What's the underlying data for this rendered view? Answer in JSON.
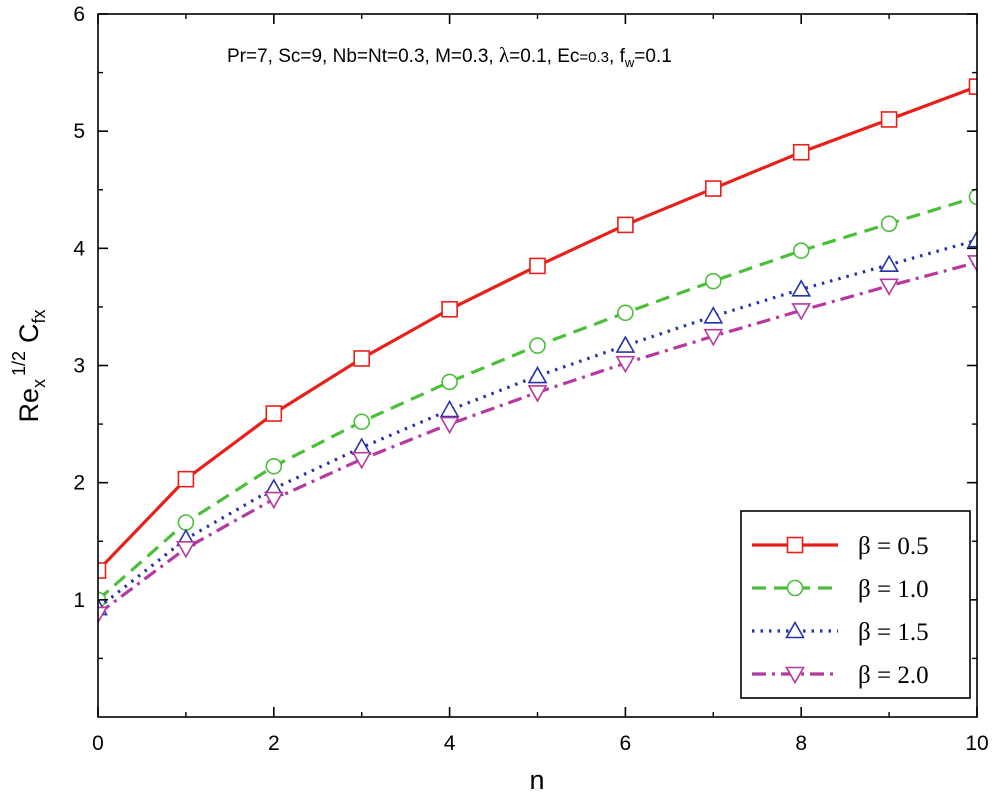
{
  "chart_data": {
    "type": "line",
    "x": [
      0,
      1,
      2,
      3,
      4,
      5,
      6,
      7,
      8,
      9,
      10
    ],
    "xlabel": "n",
    "ylabel": {
      "base": "Re",
      "base_sub": "x",
      "sup": "1/2",
      "second": "C",
      "second_sub": "fx"
    },
    "xlim": [
      0,
      10
    ],
    "ylim": [
      0,
      6
    ],
    "xticks": [
      "0",
      "2",
      "4",
      "6",
      "8",
      "10"
    ],
    "yticks": [
      "1",
      "2",
      "3",
      "4",
      "5",
      "6"
    ],
    "annotation": {
      "main": "Pr=7, Sc=9, Nb=Nt=0.3, M=0.3, ",
      "lambda": "λ",
      "lambda_val": "=0.1, Ec",
      "ec_val": "=0.3",
      "fw_pre": ", f",
      "fw_sub": "w",
      "fw_val": "=0.1"
    },
    "legend_position": "bottom-right",
    "series": [
      {
        "name": "β = 0.5",
        "color": "#e8201c",
        "dash": "solid",
        "marker": "square",
        "values": [
          1.25,
          2.03,
          2.59,
          3.06,
          3.48,
          3.85,
          4.2,
          4.51,
          4.82,
          5.1,
          5.38
        ]
      },
      {
        "name": "β = 1.0",
        "color": "#4cbf3a",
        "dash": "dash",
        "marker": "circle",
        "values": [
          1.0,
          1.66,
          2.14,
          2.52,
          2.86,
          3.17,
          3.45,
          3.72,
          3.98,
          4.21,
          4.44
        ]
      },
      {
        "name": "β = 1.5",
        "color": "#2633a6",
        "dash": "dot",
        "marker": "triangle-up",
        "values": [
          0.93,
          1.52,
          1.95,
          2.3,
          2.62,
          2.91,
          3.17,
          3.42,
          3.65,
          3.86,
          4.07
        ]
      },
      {
        "name": "β = 2.0",
        "color": "#b5399e",
        "dash": "dashdot",
        "marker": "triangle-down",
        "values": [
          0.88,
          1.44,
          1.86,
          2.2,
          2.5,
          2.77,
          3.02,
          3.25,
          3.47,
          3.68,
          3.88
        ]
      }
    ]
  }
}
